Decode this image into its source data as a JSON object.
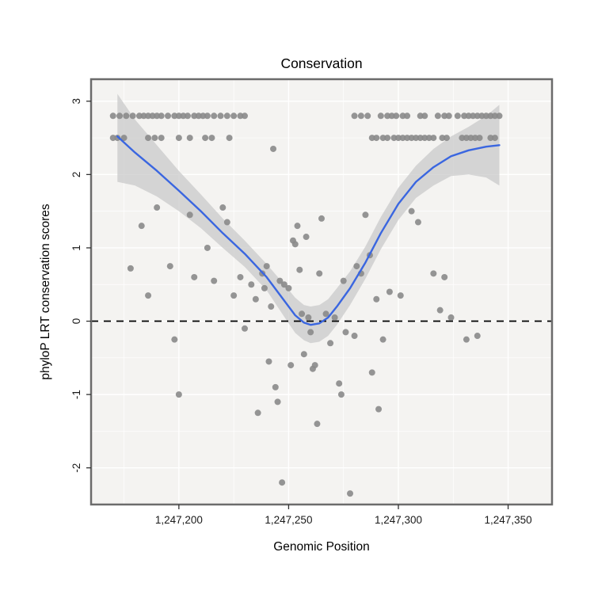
{
  "page": {
    "background": "#ffffff"
  },
  "chart_data": {
    "type": "scatter",
    "title": "Conservation",
    "xlabel": "Genomic Position",
    "ylabel": "phyloP LRT conservation scores",
    "xlim": [
      1247160,
      1247370
    ],
    "ylim": [
      -2.5,
      3.3
    ],
    "grid": true,
    "legend": "none",
    "x_ticks": [
      {
        "value": 1247200,
        "label": "1,247,200"
      },
      {
        "value": 1247250,
        "label": "1,247,250"
      },
      {
        "value": 1247300,
        "label": "1,247,300"
      },
      {
        "value": 1247350,
        "label": "1,247,350"
      }
    ],
    "y_ticks": [
      {
        "value": -2,
        "label": "-2"
      },
      {
        "value": -1,
        "label": "-1"
      },
      {
        "value": 0,
        "label": "0"
      },
      {
        "value": 1,
        "label": "1"
      },
      {
        "value": 2,
        "label": "2"
      },
      {
        "value": 3,
        "label": "3"
      }
    ],
    "x_minor": [
      1247175,
      1247225,
      1247275,
      1247325
    ],
    "y_minor": [
      -1.5,
      -0.5,
      0.5,
      1.5,
      2.5
    ],
    "panel": {
      "background": "#f4f3f1",
      "grid_color": "#ffffff",
      "border_color": "#6b6b6b"
    },
    "reference_line": {
      "y": 0,
      "style": "dashed",
      "color": "#000000"
    },
    "series": [
      {
        "name": "phyloP LRT scores",
        "type": "scatter",
        "color": "#8a8a8a",
        "point_radius": 4,
        "points": [
          [
            1247170,
            2.8
          ],
          [
            1247173,
            2.8
          ],
          [
            1247176,
            2.8
          ],
          [
            1247179,
            2.8
          ],
          [
            1247182,
            2.8
          ],
          [
            1247184,
            2.8
          ],
          [
            1247186,
            2.8
          ],
          [
            1247188,
            2.8
          ],
          [
            1247190,
            2.8
          ],
          [
            1247192,
            2.8
          ],
          [
            1247195,
            2.8
          ],
          [
            1247198,
            2.8
          ],
          [
            1247200,
            2.8
          ],
          [
            1247202,
            2.8
          ],
          [
            1247204,
            2.8
          ],
          [
            1247207,
            2.8
          ],
          [
            1247209,
            2.8
          ],
          [
            1247211,
            2.8
          ],
          [
            1247213,
            2.8
          ],
          [
            1247216,
            2.8
          ],
          [
            1247219,
            2.8
          ],
          [
            1247222,
            2.8
          ],
          [
            1247225,
            2.8
          ],
          [
            1247228,
            2.8
          ],
          [
            1247230,
            2.8
          ],
          [
            1247280,
            2.8
          ],
          [
            1247283,
            2.8
          ],
          [
            1247286,
            2.8
          ],
          [
            1247292,
            2.8
          ],
          [
            1247295,
            2.8
          ],
          [
            1247297,
            2.8
          ],
          [
            1247299,
            2.8
          ],
          [
            1247302,
            2.8
          ],
          [
            1247304,
            2.8
          ],
          [
            1247310,
            2.8
          ],
          [
            1247312,
            2.8
          ],
          [
            1247318,
            2.8
          ],
          [
            1247321,
            2.8
          ],
          [
            1247323,
            2.8
          ],
          [
            1247327,
            2.8
          ],
          [
            1247330,
            2.8
          ],
          [
            1247332,
            2.8
          ],
          [
            1247334,
            2.8
          ],
          [
            1247336,
            2.8
          ],
          [
            1247338,
            2.8
          ],
          [
            1247340,
            2.8
          ],
          [
            1247342,
            2.8
          ],
          [
            1247344,
            2.8
          ],
          [
            1247346,
            2.8
          ],
          [
            1247170,
            2.5
          ],
          [
            1247172,
            2.5
          ],
          [
            1247175,
            2.5
          ],
          [
            1247186,
            2.5
          ],
          [
            1247189,
            2.5
          ],
          [
            1247192,
            2.5
          ],
          [
            1247200,
            2.5
          ],
          [
            1247205,
            2.5
          ],
          [
            1247212,
            2.5
          ],
          [
            1247215,
            2.5
          ],
          [
            1247223,
            2.5
          ],
          [
            1247288,
            2.5
          ],
          [
            1247290,
            2.5
          ],
          [
            1247293,
            2.5
          ],
          [
            1247295,
            2.5
          ],
          [
            1247298,
            2.5
          ],
          [
            1247300,
            2.5
          ],
          [
            1247302,
            2.5
          ],
          [
            1247304,
            2.5
          ],
          [
            1247306,
            2.5
          ],
          [
            1247308,
            2.5
          ],
          [
            1247310,
            2.5
          ],
          [
            1247312,
            2.5
          ],
          [
            1247314,
            2.5
          ],
          [
            1247316,
            2.5
          ],
          [
            1247320,
            2.5
          ],
          [
            1247322,
            2.5
          ],
          [
            1247329,
            2.5
          ],
          [
            1247331,
            2.5
          ],
          [
            1247333,
            2.5
          ],
          [
            1247335,
            2.5
          ],
          [
            1247337,
            2.5
          ],
          [
            1247342,
            2.5
          ],
          [
            1247344,
            2.5
          ],
          [
            1247178,
            0.72
          ],
          [
            1247183,
            1.3
          ],
          [
            1247186,
            0.35
          ],
          [
            1247190,
            1.55
          ],
          [
            1247196,
            0.75
          ],
          [
            1247198,
            -0.25
          ],
          [
            1247200,
            -1.0
          ],
          [
            1247205,
            1.45
          ],
          [
            1247207,
            0.6
          ],
          [
            1247213,
            1.0
          ],
          [
            1247216,
            0.55
          ],
          [
            1247220,
            1.55
          ],
          [
            1247222,
            1.35
          ],
          [
            1247225,
            0.35
          ],
          [
            1247228,
            0.6
          ],
          [
            1247230,
            -0.1
          ],
          [
            1247233,
            0.5
          ],
          [
            1247235,
            0.3
          ],
          [
            1247236,
            -1.25
          ],
          [
            1247238,
            0.65
          ],
          [
            1247239,
            0.45
          ],
          [
            1247240,
            0.75
          ],
          [
            1247241,
            -0.55
          ],
          [
            1247242,
            0.2
          ],
          [
            1247243,
            2.35
          ],
          [
            1247244,
            -0.9
          ],
          [
            1247245,
            -1.1
          ],
          [
            1247246,
            0.55
          ],
          [
            1247247,
            -2.2
          ],
          [
            1247248,
            0.5
          ],
          [
            1247250,
            0.45
          ],
          [
            1247251,
            -0.6
          ],
          [
            1247252,
            1.1
          ],
          [
            1247253,
            1.05
          ],
          [
            1247254,
            1.3
          ],
          [
            1247255,
            0.7
          ],
          [
            1247256,
            0.1
          ],
          [
            1247257,
            -0.45
          ],
          [
            1247258,
            1.15
          ],
          [
            1247259,
            0.05
          ],
          [
            1247260,
            -0.15
          ],
          [
            1247261,
            -0.65
          ],
          [
            1247262,
            -0.6
          ],
          [
            1247263,
            -1.4
          ],
          [
            1247264,
            0.65
          ],
          [
            1247265,
            1.4
          ],
          [
            1247267,
            0.1
          ],
          [
            1247269,
            -0.3
          ],
          [
            1247271,
            0.05
          ],
          [
            1247273,
            -0.85
          ],
          [
            1247274,
            -1.0
          ],
          [
            1247275,
            0.55
          ],
          [
            1247276,
            -0.15
          ],
          [
            1247278,
            -2.35
          ],
          [
            1247280,
            -0.2
          ],
          [
            1247281,
            0.75
          ],
          [
            1247283,
            0.65
          ],
          [
            1247285,
            1.45
          ],
          [
            1247287,
            0.9
          ],
          [
            1247288,
            -0.7
          ],
          [
            1247290,
            0.3
          ],
          [
            1247291,
            -1.2
          ],
          [
            1247293,
            -0.25
          ],
          [
            1247296,
            0.4
          ],
          [
            1247301,
            0.35
          ],
          [
            1247306,
            1.5
          ],
          [
            1247309,
            1.35
          ],
          [
            1247316,
            0.65
          ],
          [
            1247319,
            0.15
          ],
          [
            1247321,
            0.6
          ],
          [
            1247324,
            0.05
          ],
          [
            1247331,
            -0.25
          ],
          [
            1247336,
            -0.2
          ]
        ]
      },
      {
        "name": "loess smooth",
        "type": "line",
        "color": "#3a66e0",
        "line_width": 2.4,
        "points": [
          [
            1247172,
            2.52
          ],
          [
            1247180,
            2.3
          ],
          [
            1247190,
            2.05
          ],
          [
            1247200,
            1.78
          ],
          [
            1247210,
            1.5
          ],
          [
            1247220,
            1.2
          ],
          [
            1247230,
            0.92
          ],
          [
            1247240,
            0.6
          ],
          [
            1247248,
            0.28
          ],
          [
            1247253,
            0.08
          ],
          [
            1247257,
            -0.02
          ],
          [
            1247260,
            -0.05
          ],
          [
            1247264,
            -0.03
          ],
          [
            1247268,
            0.05
          ],
          [
            1247272,
            0.2
          ],
          [
            1247278,
            0.45
          ],
          [
            1247285,
            0.8
          ],
          [
            1247292,
            1.2
          ],
          [
            1247300,
            1.6
          ],
          [
            1247308,
            1.9
          ],
          [
            1247316,
            2.1
          ],
          [
            1247324,
            2.25
          ],
          [
            1247332,
            2.33
          ],
          [
            1247340,
            2.38
          ],
          [
            1247346,
            2.4
          ]
        ]
      },
      {
        "name": "confidence band",
        "type": "band",
        "color": "#c9c9c9",
        "opacity": 0.75,
        "upper": [
          [
            1247172,
            3.1
          ],
          [
            1247180,
            2.75
          ],
          [
            1247190,
            2.4
          ],
          [
            1247200,
            2.05
          ],
          [
            1247210,
            1.73
          ],
          [
            1247220,
            1.4
          ],
          [
            1247230,
            1.1
          ],
          [
            1247240,
            0.78
          ],
          [
            1247248,
            0.5
          ],
          [
            1247253,
            0.32
          ],
          [
            1247257,
            0.22
          ],
          [
            1247260,
            0.2
          ],
          [
            1247264,
            0.22
          ],
          [
            1247268,
            0.3
          ],
          [
            1247272,
            0.45
          ],
          [
            1247278,
            0.68
          ],
          [
            1247285,
            1.02
          ],
          [
            1247292,
            1.42
          ],
          [
            1247300,
            1.82
          ],
          [
            1247308,
            2.12
          ],
          [
            1247316,
            2.35
          ],
          [
            1247324,
            2.52
          ],
          [
            1247332,
            2.65
          ],
          [
            1247340,
            2.8
          ],
          [
            1247346,
            2.95
          ]
        ],
        "lower": [
          [
            1247172,
            1.9
          ],
          [
            1247180,
            1.85
          ],
          [
            1247190,
            1.7
          ],
          [
            1247200,
            1.5
          ],
          [
            1247210,
            1.27
          ],
          [
            1247220,
            1.0
          ],
          [
            1247230,
            0.74
          ],
          [
            1247240,
            0.42
          ],
          [
            1247248,
            0.06
          ],
          [
            1247253,
            -0.16
          ],
          [
            1247257,
            -0.26
          ],
          [
            1247260,
            -0.3
          ],
          [
            1247264,
            -0.28
          ],
          [
            1247268,
            -0.2
          ],
          [
            1247272,
            -0.05
          ],
          [
            1247278,
            0.22
          ],
          [
            1247285,
            0.58
          ],
          [
            1247292,
            0.98
          ],
          [
            1247300,
            1.38
          ],
          [
            1247308,
            1.68
          ],
          [
            1247316,
            1.85
          ],
          [
            1247324,
            1.98
          ],
          [
            1247332,
            2.0
          ],
          [
            1247340,
            1.96
          ],
          [
            1247346,
            1.85
          ]
        ]
      }
    ]
  }
}
